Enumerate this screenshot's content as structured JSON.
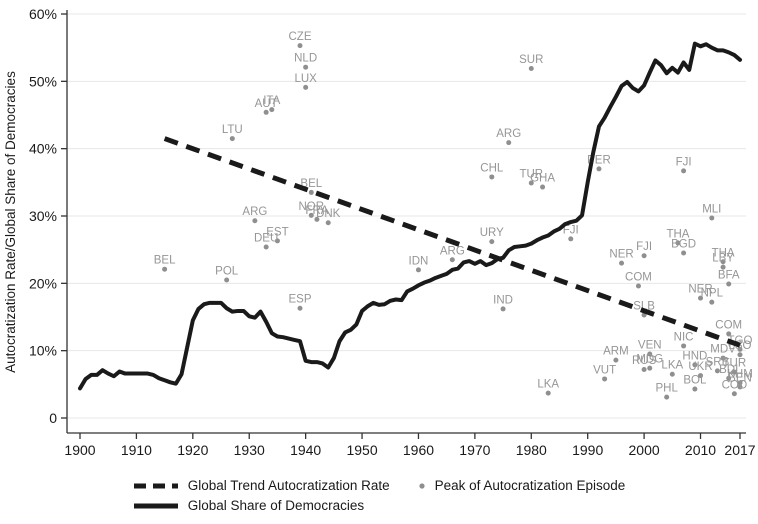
{
  "chart_data": {
    "type": "line",
    "y_axis": {
      "label": "Autocratization Rate/Global Share of Democracies",
      "range": [
        0,
        60
      ],
      "ticks": [
        {
          "v": 0,
          "label": "0"
        },
        {
          "v": 10,
          "label": "10%"
        },
        {
          "v": 20,
          "label": "20%"
        },
        {
          "v": 30,
          "label": "30%"
        },
        {
          "v": 40,
          "label": "40%"
        },
        {
          "v": 50,
          "label": "50%"
        },
        {
          "v": 60,
          "label": "60%"
        }
      ],
      "grid": true
    },
    "x_axis": {
      "label": "",
      "ticks": [
        1900,
        1910,
        1920,
        1930,
        1940,
        1950,
        1960,
        1970,
        1980,
        1990,
        2000,
        2010,
        2017
      ],
      "range": [
        1898,
        2018
      ]
    },
    "colors": {
      "line": "#1a1a1a",
      "scatter": "#8f8f8f",
      "scatter_label": "#969696",
      "grid": "#e7e7e7",
      "axis": "#333333"
    },
    "series": [
      {
        "name": "Global Share of Democracies",
        "style": "solid",
        "points": [
          [
            1900,
            4.4
          ],
          [
            1901,
            5.8
          ],
          [
            1902,
            6.4
          ],
          [
            1903,
            6.4
          ],
          [
            1904,
            7.1
          ],
          [
            1905,
            6.6
          ],
          [
            1906,
            6.2
          ],
          [
            1907,
            6.9
          ],
          [
            1908,
            6.6
          ],
          [
            1909,
            6.6
          ],
          [
            1910,
            6.6
          ],
          [
            1911,
            6.6
          ],
          [
            1912,
            6.6
          ],
          [
            1913,
            6.4
          ],
          [
            1914,
            5.9
          ],
          [
            1915,
            5.6
          ],
          [
            1916,
            5.3
          ],
          [
            1917,
            5.1
          ],
          [
            1918,
            6.5
          ],
          [
            1919,
            10.5
          ],
          [
            1920,
            14.5
          ],
          [
            1921,
            16.2
          ],
          [
            1922,
            16.9
          ],
          [
            1923,
            17.1
          ],
          [
            1924,
            17.1
          ],
          [
            1925,
            17.1
          ],
          [
            1926,
            16.3
          ],
          [
            1927,
            15.8
          ],
          [
            1928,
            15.9
          ],
          [
            1929,
            15.9
          ],
          [
            1930,
            15.1
          ],
          [
            1931,
            14.9
          ],
          [
            1932,
            15.8
          ],
          [
            1933,
            14.3
          ],
          [
            1934,
            12.6
          ],
          [
            1935,
            12.1
          ],
          [
            1936,
            12.0
          ],
          [
            1937,
            11.8
          ],
          [
            1938,
            11.6
          ],
          [
            1939,
            11.4
          ],
          [
            1940,
            8.5
          ],
          [
            1941,
            8.3
          ],
          [
            1942,
            8.3
          ],
          [
            1943,
            8.1
          ],
          [
            1944,
            7.5
          ],
          [
            1945,
            8.9
          ],
          [
            1946,
            11.4
          ],
          [
            1947,
            12.7
          ],
          [
            1948,
            13.1
          ],
          [
            1949,
            13.9
          ],
          [
            1950,
            15.9
          ],
          [
            1951,
            16.6
          ],
          [
            1952,
            17.1
          ],
          [
            1953,
            16.8
          ],
          [
            1954,
            16.9
          ],
          [
            1955,
            17.4
          ],
          [
            1956,
            17.6
          ],
          [
            1957,
            17.5
          ],
          [
            1958,
            18.8
          ],
          [
            1959,
            19.2
          ],
          [
            1960,
            19.7
          ],
          [
            1961,
            20.1
          ],
          [
            1962,
            20.4
          ],
          [
            1963,
            20.8
          ],
          [
            1964,
            21.1
          ],
          [
            1965,
            21.4
          ],
          [
            1966,
            22.0
          ],
          [
            1967,
            22.2
          ],
          [
            1968,
            23.1
          ],
          [
            1969,
            23.3
          ],
          [
            1970,
            22.9
          ],
          [
            1971,
            23.3
          ],
          [
            1972,
            22.7
          ],
          [
            1973,
            23.0
          ],
          [
            1974,
            23.6
          ],
          [
            1975,
            23.8
          ],
          [
            1976,
            24.9
          ],
          [
            1977,
            25.4
          ],
          [
            1978,
            25.5
          ],
          [
            1979,
            25.6
          ],
          [
            1980,
            25.9
          ],
          [
            1981,
            26.4
          ],
          [
            1982,
            26.8
          ],
          [
            1983,
            27.1
          ],
          [
            1984,
            27.7
          ],
          [
            1985,
            28.1
          ],
          [
            1986,
            28.8
          ],
          [
            1987,
            29.1
          ],
          [
            1988,
            29.3
          ],
          [
            1989,
            30.1
          ],
          [
            1990,
            35.0
          ],
          [
            1991,
            39.5
          ],
          [
            1992,
            43.3
          ],
          [
            1993,
            44.6
          ],
          [
            1994,
            46.2
          ],
          [
            1995,
            47.7
          ],
          [
            1996,
            49.3
          ],
          [
            1997,
            49.9
          ],
          [
            1998,
            49.0
          ],
          [
            1999,
            48.5
          ],
          [
            2000,
            49.4
          ],
          [
            2001,
            51.3
          ],
          [
            2002,
            53.1
          ],
          [
            2003,
            52.4
          ],
          [
            2004,
            51.2
          ],
          [
            2005,
            52.0
          ],
          [
            2006,
            51.3
          ],
          [
            2007,
            52.8
          ],
          [
            2008,
            51.7
          ],
          [
            2009,
            55.6
          ],
          [
            2010,
            55.2
          ],
          [
            2011,
            55.5
          ],
          [
            2012,
            55.0
          ],
          [
            2013,
            54.6
          ],
          [
            2014,
            54.6
          ],
          [
            2015,
            54.3
          ],
          [
            2016,
            53.9
          ],
          [
            2017,
            53.2
          ]
        ]
      },
      {
        "name": "Global Trend Autocratization Rate",
        "style": "dashed",
        "points": [
          [
            1915,
            41.5
          ],
          [
            2017,
            10.8
          ]
        ]
      }
    ],
    "scatter": {
      "name": "Peak of Autocratization Episode",
      "points": [
        {
          "label": "CZE",
          "year": 1939,
          "value": 55.3
        },
        {
          "label": "NLD",
          "year": 1940,
          "value": 52.1
        },
        {
          "label": "LUX",
          "year": 1940,
          "value": 49.1
        },
        {
          "label": "AUT",
          "year": 1933,
          "value": 45.4
        },
        {
          "label": "ITA",
          "year": 1934,
          "value": 45.8
        },
        {
          "label": "LTU",
          "year": 1927,
          "value": 41.5
        },
        {
          "label": "BEL",
          "year": 1941,
          "value": 33.5
        },
        {
          "label": "NOR",
          "year": 1941,
          "value": 30.1
        },
        {
          "label": "FRA",
          "year": 1942,
          "value": 29.5
        },
        {
          "label": "DNK",
          "year": 1944,
          "value": 29.0
        },
        {
          "label": "ARG",
          "year": 1931,
          "value": 29.3
        },
        {
          "label": "EST",
          "year": 1935,
          "value": 26.3
        },
        {
          "label": "DEU",
          "year": 1933,
          "value": 25.4
        },
        {
          "label": "BEL",
          "year": 1915,
          "value": 22.1
        },
        {
          "label": "POL",
          "year": 1926,
          "value": 20.5
        },
        {
          "label": "ESP",
          "year": 1939,
          "value": 16.3
        },
        {
          "label": "SUR",
          "year": 1980,
          "value": 51.9
        },
        {
          "label": "ARG",
          "year": 1976,
          "value": 40.9
        },
        {
          "label": "CHL",
          "year": 1973,
          "value": 35.8
        },
        {
          "label": "TUR",
          "year": 1980,
          "value": 34.9
        },
        {
          "label": "GHA",
          "year": 1982,
          "value": 34.3
        },
        {
          "label": "PER",
          "year": 1992,
          "value": 37.0
        },
        {
          "label": "URY",
          "year": 1973,
          "value": 26.2
        },
        {
          "label": "ARG",
          "year": 1966,
          "value": 23.5
        },
        {
          "label": "IDN",
          "year": 1960,
          "value": 22.0
        },
        {
          "label": "IND",
          "year": 1975,
          "value": 16.2
        },
        {
          "label": "FJI",
          "year": 1987,
          "value": 26.6
        },
        {
          "label": "FJI",
          "year": 2007,
          "value": 36.7
        },
        {
          "label": "MLI",
          "year": 2012,
          "value": 29.7
        },
        {
          "label": "THA",
          "year": 2006,
          "value": 26.0
        },
        {
          "label": "BGD",
          "year": 2007,
          "value": 24.5
        },
        {
          "label": "NER",
          "year": 1996,
          "value": 23.0
        },
        {
          "label": "FJI",
          "year": 2000,
          "value": 24.1
        },
        {
          "label": "THA",
          "year": 2014,
          "value": 23.2
        },
        {
          "label": "LBY",
          "year": 2014,
          "value": 22.4
        },
        {
          "label": "BFA",
          "year": 2015,
          "value": 19.9
        },
        {
          "label": "COM",
          "year": 1999,
          "value": 19.6
        },
        {
          "label": "NER",
          "year": 2010,
          "value": 17.8
        },
        {
          "label": "NPL",
          "year": 2012,
          "value": 17.2
        },
        {
          "label": "SLB",
          "year": 2000,
          "value": 15.3
        },
        {
          "label": "COM",
          "year": 2015,
          "value": 12.5
        },
        {
          "label": "TGO",
          "year": 2017,
          "value": 10.2
        },
        {
          "label": "LSO",
          "year": 2017,
          "value": 9.4
        },
        {
          "label": "NIC",
          "year": 2007,
          "value": 10.7
        },
        {
          "label": "VEN",
          "year": 2001,
          "value": 9.5
        },
        {
          "label": "ARM",
          "year": 1995,
          "value": 8.6
        },
        {
          "label": "MDV",
          "year": 2014,
          "value": 8.9
        },
        {
          "label": "RUS",
          "year": 2000,
          "value": 7.2
        },
        {
          "label": "MDG",
          "year": 2001,
          "value": 7.4
        },
        {
          "label": "LKA",
          "year": 2005,
          "value": 6.5
        },
        {
          "label": "HND",
          "year": 2009,
          "value": 7.9
        },
        {
          "label": "SRB",
          "year": 2013,
          "value": 7.0
        },
        {
          "label": "UKR",
          "year": 2010,
          "value": 6.3
        },
        {
          "label": "TUR",
          "year": 2016,
          "value": 6.8
        },
        {
          "label": "BDI",
          "year": 2015,
          "value": 5.9
        },
        {
          "label": "KHM",
          "year": 2017,
          "value": 5.2
        },
        {
          "label": "BEN",
          "year": 2017,
          "value": 4.6
        },
        {
          "label": "BOL",
          "year": 2009,
          "value": 4.3
        },
        {
          "label": "COD",
          "year": 2016,
          "value": 3.6
        },
        {
          "label": "VUT",
          "year": 1993,
          "value": 5.8
        },
        {
          "label": "PHL",
          "year": 2004,
          "value": 3.1
        },
        {
          "label": "LKA",
          "year": 1983,
          "value": 3.7
        }
      ]
    }
  },
  "legend": {
    "items": [
      {
        "label": "Global Trend Autocratization Rate",
        "swatch": "dashed-line"
      },
      {
        "label": "Peak of Autocratization Episode",
        "swatch": "gray-dot"
      },
      {
        "label": "Global Share of Democracies",
        "swatch": "solid-line"
      }
    ]
  }
}
